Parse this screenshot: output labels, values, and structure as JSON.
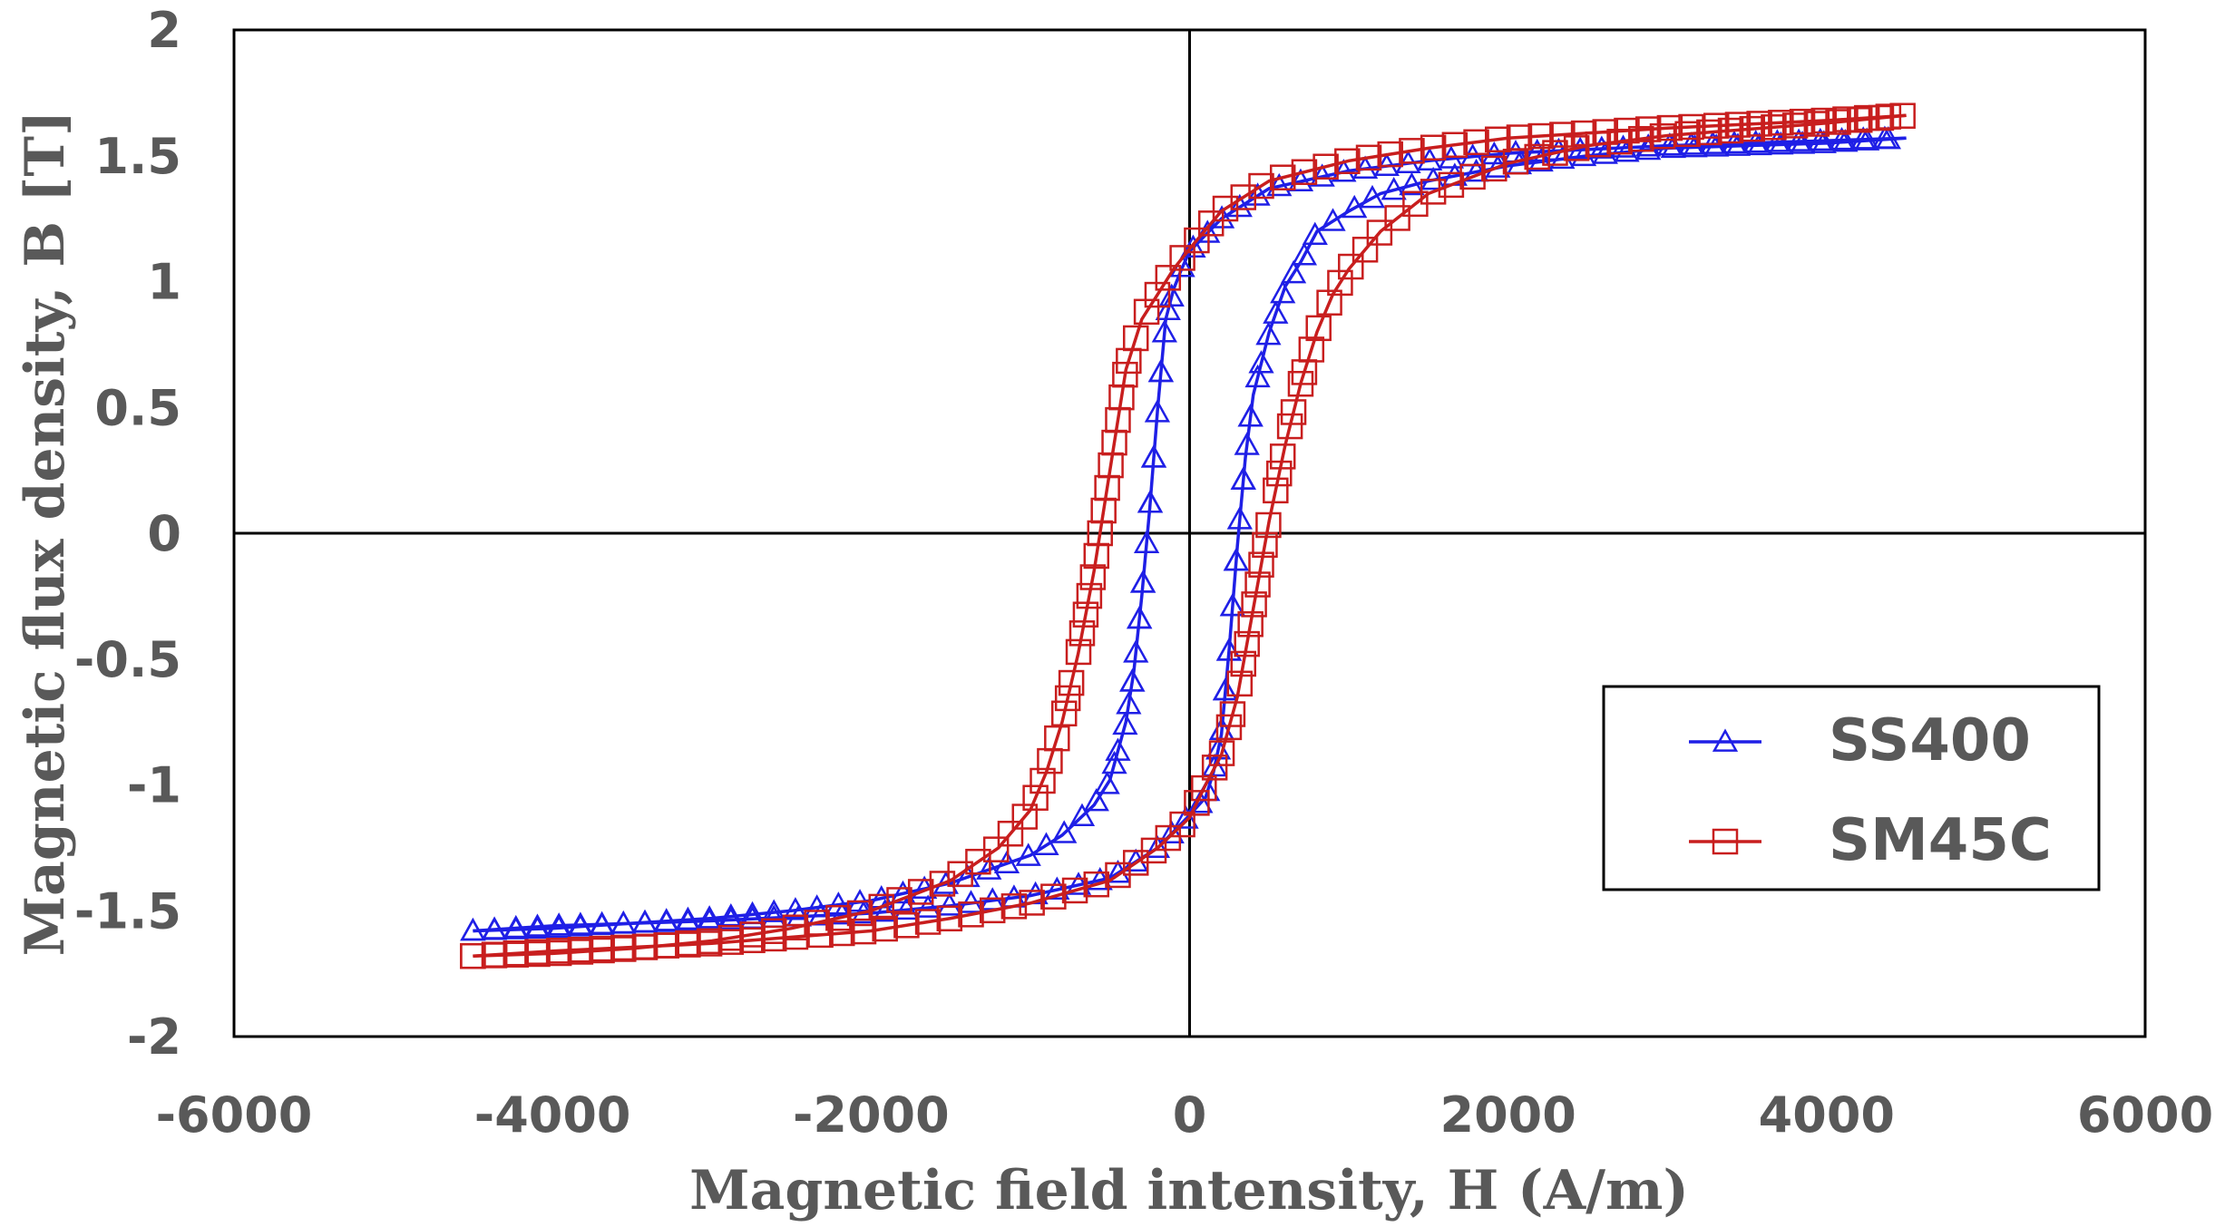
{
  "chart_data": {
    "type": "scatter",
    "title": "",
    "xlabel": "Magnetic field intensity, H (A/m)",
    "ylabel": "Magnetic flux density, B [T]",
    "xlim": [
      -6000,
      6000
    ],
    "ylim": [
      -2,
      2
    ],
    "xticks": [
      -6000,
      -4000,
      -2000,
      0,
      2000,
      4000,
      6000
    ],
    "yticks": [
      -2,
      -1.5,
      -1,
      -0.5,
      0,
      0.5,
      1,
      1.5,
      2
    ],
    "xtick_labels": [
      "-6000",
      "-4000",
      "-2000",
      "0",
      "2000",
      "4000",
      "6000"
    ],
    "ytick_labels": [
      "-2",
      "-1.5",
      "-1",
      "-0.5",
      "0",
      "0.5",
      "1",
      "1.5",
      "2"
    ],
    "grid": false,
    "zero_lines": true,
    "legend_position": "bottom-right",
    "series": [
      {
        "name": "SS400",
        "color": "#1f1fe6",
        "marker": "triangle-open",
        "upper_branch": {
          "x": [
            -4500,
            -4000,
            -3500,
            -3000,
            -2500,
            -2000,
            -1500,
            -1000,
            -800,
            -600,
            -500,
            -400,
            -350,
            -300,
            -250,
            -200,
            -150,
            -100,
            -50,
            0,
            200,
            500,
            1000,
            1500,
            2000,
            3000,
            4000,
            4500
          ],
          "y": [
            -1.58,
            -1.57,
            -1.55,
            -1.53,
            -1.5,
            -1.46,
            -1.39,
            -1.28,
            -1.2,
            -1.08,
            -0.98,
            -0.75,
            -0.55,
            -0.25,
            0.1,
            0.5,
            0.85,
            0.97,
            1.05,
            1.12,
            1.25,
            1.37,
            1.44,
            1.48,
            1.51,
            1.54,
            1.56,
            1.57
          ]
        },
        "lower_branch": {
          "x": [
            -4500,
            -4000,
            -3000,
            -2000,
            -1500,
            -1000,
            -500,
            -200,
            0,
            100,
            150,
            200,
            250,
            300,
            350,
            400,
            500,
            600,
            700,
            800,
            1000,
            1200,
            1500,
            2000,
            2500,
            3000,
            4000,
            4500
          ],
          "y": [
            -1.58,
            -1.56,
            -1.54,
            -1.51,
            -1.48,
            -1.44,
            -1.37,
            -1.25,
            -1.12,
            -1.05,
            -0.95,
            -0.8,
            -0.45,
            -0.05,
            0.3,
            0.55,
            0.8,
            0.98,
            1.08,
            1.2,
            1.28,
            1.35,
            1.4,
            1.46,
            1.5,
            1.53,
            1.55,
            1.57
          ]
        }
      },
      {
        "name": "SM45C",
        "color": "#c81e1e",
        "marker": "square-open",
        "upper_branch": {
          "x": [
            -4500,
            -4000,
            -3500,
            -3000,
            -2500,
            -2000,
            -1500,
            -1200,
            -1000,
            -900,
            -800,
            -700,
            -600,
            -500,
            -400,
            -300,
            -200,
            -100,
            0,
            200,
            500,
            1000,
            1500,
            2000,
            3000,
            4000,
            4500
          ],
          "y": [
            -1.68,
            -1.67,
            -1.65,
            -1.62,
            -1.57,
            -1.5,
            -1.38,
            -1.25,
            -1.1,
            -0.95,
            -0.75,
            -0.48,
            -0.15,
            0.25,
            0.65,
            0.85,
            0.95,
            1.05,
            1.13,
            1.28,
            1.4,
            1.48,
            1.53,
            1.57,
            1.61,
            1.64,
            1.66
          ]
        },
        "lower_branch": {
          "x": [
            -4500,
            -4000,
            -3000,
            -2000,
            -1500,
            -1000,
            -500,
            -200,
            0,
            100,
            200,
            300,
            400,
            500,
            600,
            700,
            800,
            900,
            1000,
            1200,
            1500,
            2000,
            2500,
            3000,
            4000,
            4500
          ],
          "y": [
            -1.68,
            -1.66,
            -1.63,
            -1.58,
            -1.53,
            -1.47,
            -1.38,
            -1.25,
            -1.13,
            -1.0,
            -0.88,
            -0.65,
            -0.3,
            0.05,
            0.35,
            0.6,
            0.8,
            0.95,
            1.05,
            1.2,
            1.35,
            1.47,
            1.54,
            1.58,
            1.63,
            1.66
          ]
        }
      }
    ]
  }
}
